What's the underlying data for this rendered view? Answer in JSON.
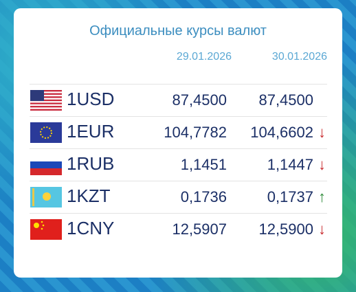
{
  "header": {
    "title": "Официальные курсы валют",
    "dates": [
      "29.01.2026",
      "30.01.2026"
    ]
  },
  "table": {
    "rows": [
      [
        "1USD",
        "87,4500",
        "87,4500",
        null
      ],
      [
        "1EUR",
        "104,7782",
        "104,6602",
        "↓"
      ],
      [
        "1RUB",
        "1,1451",
        "1,1447",
        "↓"
      ],
      [
        "1KZT",
        "0,1736",
        "0,1737",
        "↑"
      ],
      [
        "1CNY",
        "12,5907",
        "12,5900",
        "↓"
      ]
    ]
  }
}
